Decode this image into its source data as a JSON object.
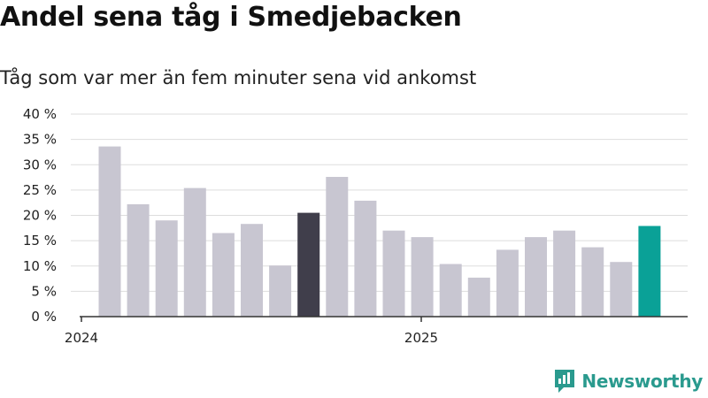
{
  "title": "Andel sena tåg i Smedjebacken",
  "subtitle": "Tåg som var mer än fem minuter sena vid ankomst",
  "brand": {
    "name": "Newsworthy",
    "icon": "newsworthy-logo-icon"
  },
  "colors": {
    "bar": "#c8c6d1",
    "highlight_dark": "#403e4b",
    "highlight_accent": "#0aa197",
    "grid": "#dddddd",
    "axis": "#333333"
  },
  "chart_data": {
    "type": "bar",
    "title": "Andel sena tåg i Smedjebacken",
    "subtitle": "Tåg som var mer än fem minuter sena vid ankomst",
    "xlabel": "",
    "ylabel": "",
    "ylim": [
      0,
      40
    ],
    "y_ticks": [
      "0 %",
      "5 %",
      "10 %",
      "15 %",
      "20 %",
      "25 %",
      "30 %",
      "35 %",
      "40 %"
    ],
    "x_ticks": [
      "2024",
      "2025"
    ],
    "grid": true,
    "values": [
      33.6,
      22.2,
      19.0,
      25.4,
      16.5,
      18.3,
      10.1,
      20.5,
      27.6,
      22.9,
      17.0,
      15.7,
      10.4,
      7.7,
      13.2,
      15.7,
      17.0,
      13.7,
      10.8,
      17.9
    ],
    "highlights": [
      {
        "index": 7,
        "color": "#403e4b"
      },
      {
        "index": 19,
        "color": "#0aa197"
      }
    ]
  }
}
